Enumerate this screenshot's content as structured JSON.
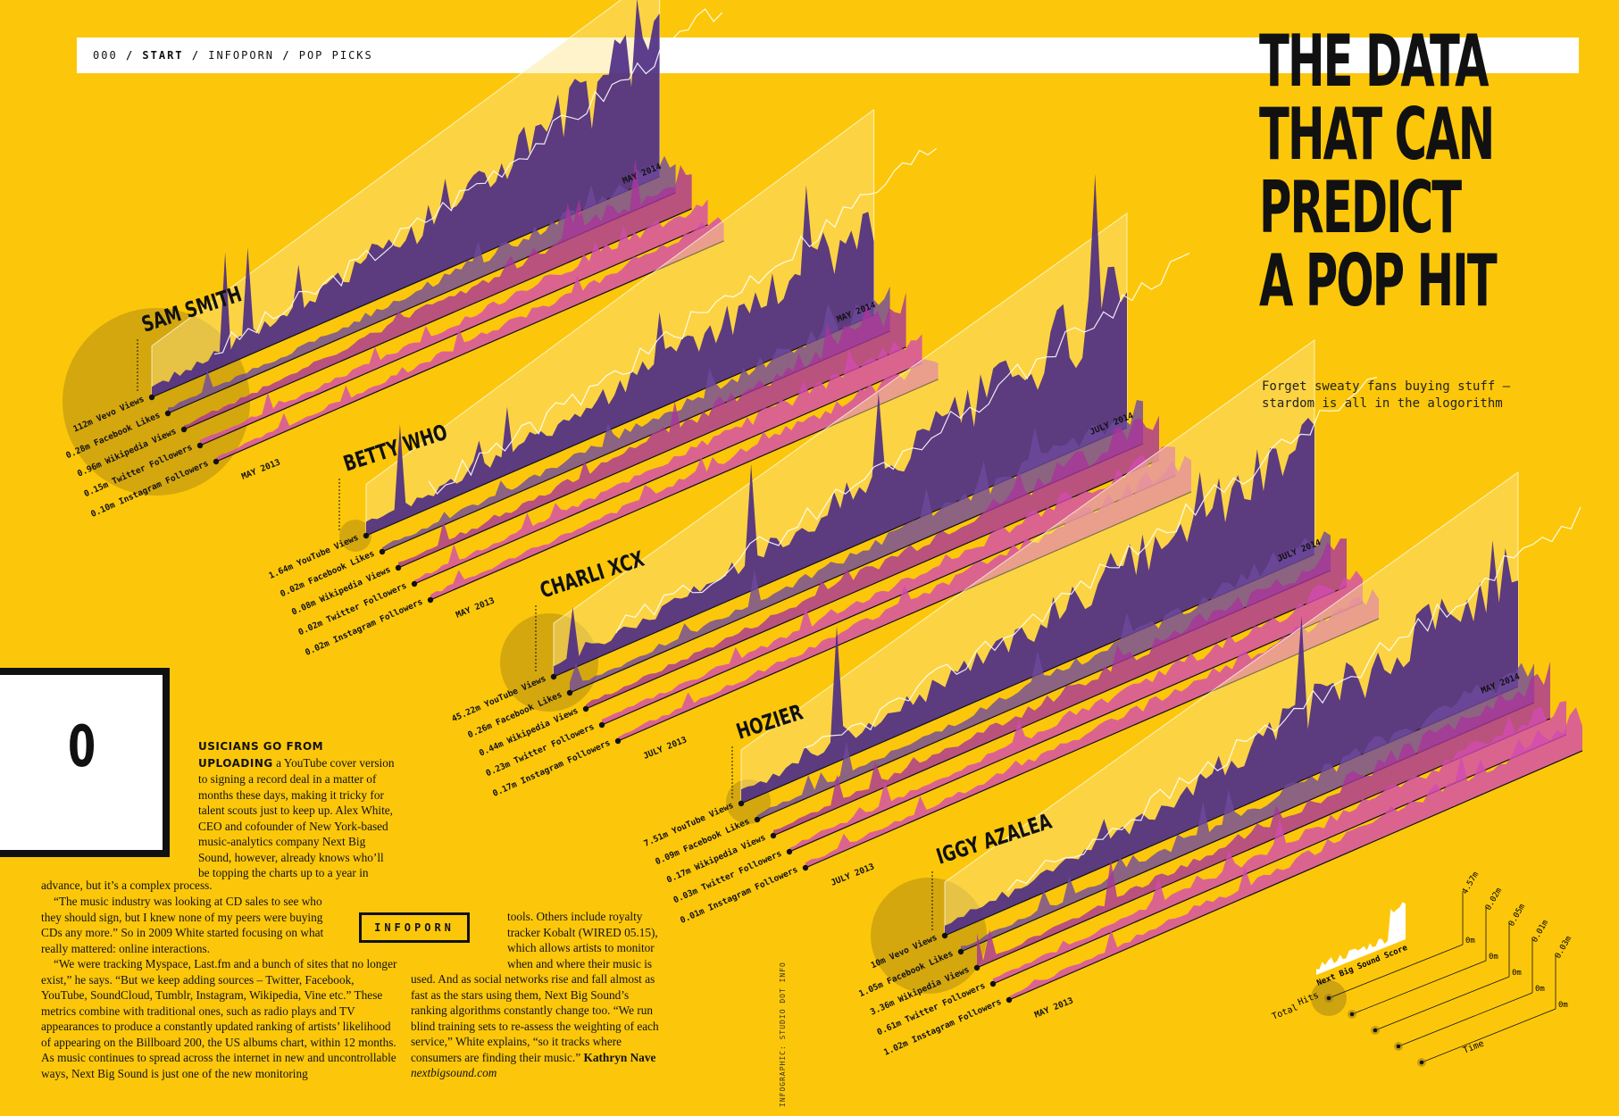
{
  "breadcrumb": {
    "num": "000",
    "section": "START",
    "sub1": "INFOPORN",
    "sub2": "POP PICKS",
    "sep": "/"
  },
  "headline": [
    "THE DATA",
    "THAT CAN",
    "PREDICT",
    "A POP HIT"
  ],
  "subhead": "Forget sweaty fans buying stuff – stardom is all in the alogorithm",
  "article": {
    "dropcap": "0",
    "lead": "USICIANS GO FROM UPLOADING",
    "p1": "a YouTube cover version to signing a record deal in a matter of months these days, making it tricky for talent scouts just to keep up. Alex White, CEO and cofounder of New York-based music-analytics company Next Big Sound, however, already knows who’ll be topping the charts up to a year in",
    "p1_tail": "advance, but it’s a complex process.",
    "p2": "“The music industry was looking at CD sales to see who they should sign, but I knew none of my peers were buying CDs any more.” So in 2009 White started focusing on what really mattered: online interactions.",
    "p3": "“We were tracking Myspace, Last.fm and a bunch of sites that no longer exist,” he says. “But we keep adding sources – Twitter, Facebook, YouTube, SoundCloud, Tumblr, Instagram, Wikipedia, Vine etc.” These metrics combine with traditional ones, such as radio plays and TV appearances to produce a constantly updated ranking of artists’ likelihood of appearing on the Billboard 200, the US albums chart, within 12 months. As music continues to spread across the internet in new and uncontrollable ways, Next Big Sound is just one of the new monitoring",
    "p4": "tools. Others include royalty tracker Kobalt (WIRED 05.15), which allows artists to monitor when and where their music is",
    "p5": "used. And as social networks rise and fall almost as fast as the stars using them, Next Big Sound’s ranking algorithms constantly change too. “We run blind training sets to re-assess the weighting of each service,” White explains, “so it tracks where consumers are finding their music.”",
    "author": "Kathryn Nave",
    "url": "nextbigsound.com"
  },
  "infoporn_label": "INFOPORN",
  "credit": "INFOGRAPHIC: STUDIO DOT INFO",
  "colors": {
    "background": "#fcc70a",
    "purple_dark": "#4a2a86",
    "purple_mid": "#6f4a9e",
    "magenta": "#a8349a",
    "pink": "#d24bb0",
    "panel": "#fde48a"
  },
  "chart_data": {
    "type": "area",
    "series_order": [
      "Views",
      "Facebook Likes",
      "Wikipedia Views",
      "Twitter Followers",
      "Instagram Followers"
    ],
    "artists": [
      {
        "name": "SAM SMITH",
        "start": "MAY 2013",
        "end": "MAY 2014",
        "metrics": [
          "112m Vevo Views",
          "0.28m Facebook Likes",
          "0.96m Wikipedia Views",
          "0.15m Twitter Followers",
          "0.10m Instagram Followers"
        ],
        "peaks": [
          0.9,
          0.5,
          0.6,
          0.35,
          0.3
        ]
      },
      {
        "name": "BETTY WHO",
        "start": "MAY 2013",
        "end": "MAY 2014",
        "metrics": [
          "1.64m YouTube Views",
          "0.02m Facebook Likes",
          "0.08m Wikipedia Views",
          "0.02m Twitter Followers",
          "0.02m Instagram Followers"
        ],
        "peaks": [
          0.6,
          0.5,
          0.7,
          0.4,
          0.3
        ]
      },
      {
        "name": "CHARLI XCX",
        "start": "JULY 2013",
        "end": "JULY 2014",
        "metrics": [
          "45.22m YouTube Views",
          "0.26m Facebook Likes",
          "0.44m Wikipedia Views",
          "0.23m Twitter Followers",
          "0.17m Instagram Followers"
        ],
        "peaks": [
          0.85,
          0.5,
          0.6,
          0.4,
          0.45
        ]
      },
      {
        "name": "HOZIER",
        "start": "JULY 2013",
        "end": "JULY 2014",
        "metrics": [
          "7.51m YouTube Views",
          "0.09m Facebook Likes",
          "0.17m Wikipedia Views",
          "0.03m Twitter Followers",
          "0.01m Instagram Followers"
        ],
        "peaks": [
          0.8,
          0.55,
          0.6,
          0.4,
          0.35
        ]
      },
      {
        "name": "IGGY AZALEA",
        "start": "MAY 2013",
        "end": "MAY 2014",
        "metrics": [
          "10m Vevo Views",
          "1.05m Facebook Likes",
          "3.36m Wikipedia Views",
          "0.61m Twitter Followers",
          "1.02m Instagram Followers"
        ],
        "peaks": [
          0.8,
          0.6,
          0.65,
          0.45,
          0.5
        ]
      }
    ],
    "legend": {
      "score_label": "Next Big Sound Score",
      "total_label": "Total",
      "hits_label": "Hits",
      "time_label": "Time",
      "axis_max": [
        "4.57m",
        "0.02m",
        "0.05m",
        "0.01m",
        "0.03m"
      ],
      "axis_min": [
        "0m",
        "0m",
        "0m",
        "0m",
        "0m"
      ]
    }
  }
}
